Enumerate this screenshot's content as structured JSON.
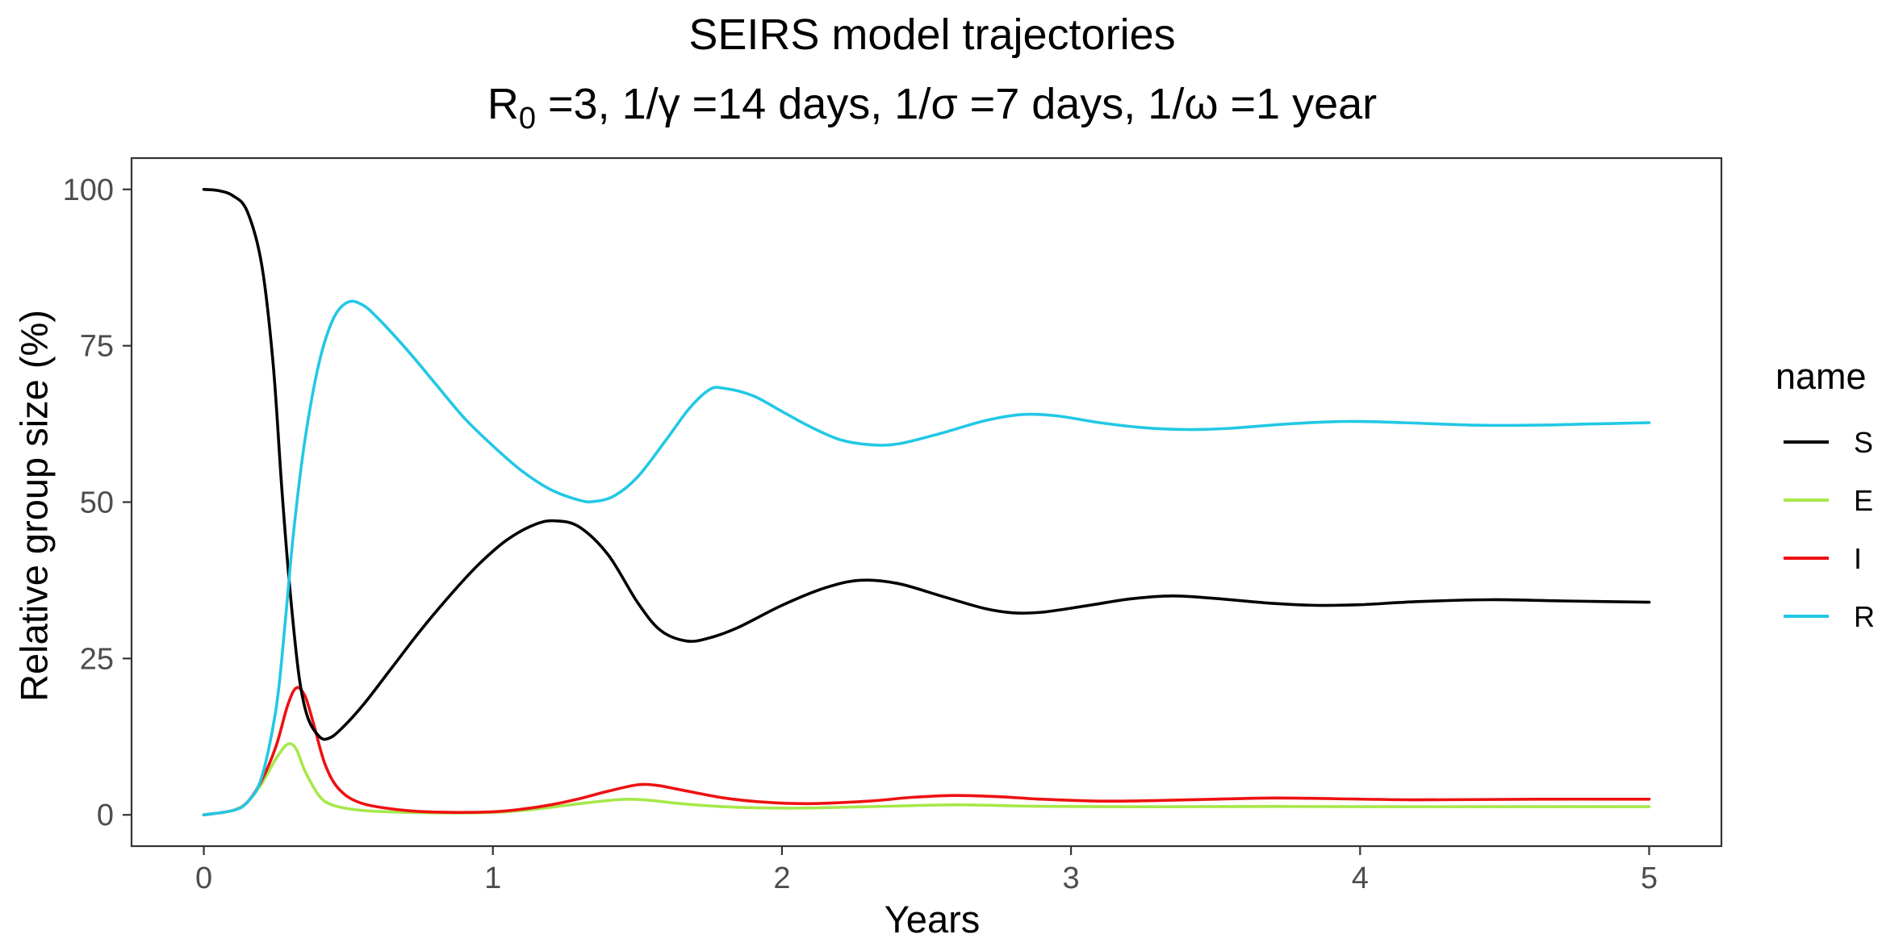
{
  "chart_data": {
    "type": "line",
    "title": "SEIRS model trajectories",
    "subtitle": {
      "r_base": "R",
      "r_sub": "0",
      "rest": " =3, 1/γ =14 days, 1/σ =7 days, 1/ω =1 year"
    },
    "xlabel": "Years",
    "ylabel": "Relative group size (%)",
    "xlim": [
      -0.25,
      5.25
    ],
    "ylim": [
      -5,
      105
    ],
    "x_ticks": [
      0,
      1,
      2,
      3,
      4,
      5
    ],
    "y_ticks": [
      0,
      25,
      50,
      75,
      100
    ],
    "grid": false,
    "legend": {
      "title": "name",
      "position": "right"
    },
    "series": [
      {
        "name": "S",
        "color": "#000000",
        "points": [
          [
            0,
            100
          ],
          [
            0.05,
            99.8
          ],
          [
            0.1,
            99
          ],
          [
            0.15,
            96.5
          ],
          [
            0.2,
            88
          ],
          [
            0.24,
            72
          ],
          [
            0.27,
            52
          ],
          [
            0.3,
            35
          ],
          [
            0.33,
            22
          ],
          [
            0.36,
            15.5
          ],
          [
            0.4,
            12.5
          ],
          [
            0.43,
            12.2
          ],
          [
            0.47,
            13.5
          ],
          [
            0.55,
            17.5
          ],
          [
            0.65,
            23.5
          ],
          [
            0.75,
            29.5
          ],
          [
            0.85,
            35
          ],
          [
            0.95,
            40
          ],
          [
            1.05,
            44
          ],
          [
            1.15,
            46.5
          ],
          [
            1.22,
            47
          ],
          [
            1.3,
            46
          ],
          [
            1.4,
            41.5
          ],
          [
            1.5,
            34
          ],
          [
            1.58,
            29.5
          ],
          [
            1.67,
            27.8
          ],
          [
            1.75,
            28.3
          ],
          [
            1.85,
            30
          ],
          [
            2.0,
            33.5
          ],
          [
            2.15,
            36.3
          ],
          [
            2.27,
            37.5
          ],
          [
            2.4,
            37
          ],
          [
            2.55,
            35
          ],
          [
            2.7,
            33
          ],
          [
            2.8,
            32.3
          ],
          [
            2.9,
            32.4
          ],
          [
            3.05,
            33.4
          ],
          [
            3.2,
            34.5
          ],
          [
            3.35,
            35
          ],
          [
            3.5,
            34.6
          ],
          [
            3.7,
            33.8
          ],
          [
            3.85,
            33.5
          ],
          [
            4.0,
            33.6
          ],
          [
            4.2,
            34.1
          ],
          [
            4.45,
            34.4
          ],
          [
            4.7,
            34.2
          ],
          [
            5.0,
            34
          ]
        ]
      },
      {
        "name": "E",
        "color": "#a6e84a",
        "points": [
          [
            0,
            0
          ],
          [
            0.1,
            0.7
          ],
          [
            0.15,
            2
          ],
          [
            0.2,
            5
          ],
          [
            0.25,
            9
          ],
          [
            0.29,
            11.3
          ],
          [
            0.32,
            10.5
          ],
          [
            0.35,
            7
          ],
          [
            0.4,
            3
          ],
          [
            0.45,
            1.5
          ],
          [
            0.55,
            0.7
          ],
          [
            0.7,
            0.4
          ],
          [
            0.85,
            0.3
          ],
          [
            1.0,
            0.4
          ],
          [
            1.1,
            0.7
          ],
          [
            1.2,
            1.2
          ],
          [
            1.3,
            1.8
          ],
          [
            1.4,
            2.3
          ],
          [
            1.47,
            2.5
          ],
          [
            1.55,
            2.3
          ],
          [
            1.65,
            1.8
          ],
          [
            1.8,
            1.3
          ],
          [
            1.95,
            1.1
          ],
          [
            2.1,
            1.1
          ],
          [
            2.3,
            1.3
          ],
          [
            2.6,
            1.6
          ],
          [
            2.85,
            1.4
          ],
          [
            3.1,
            1.3
          ],
          [
            3.4,
            1.3
          ],
          [
            3.7,
            1.35
          ],
          [
            4.0,
            1.3
          ],
          [
            4.5,
            1.3
          ],
          [
            5.0,
            1.3
          ]
        ]
      },
      {
        "name": "I",
        "color": "#ee1111",
        "points": [
          [
            0,
            0
          ],
          [
            0.1,
            0.7
          ],
          [
            0.15,
            2
          ],
          [
            0.2,
            5.5
          ],
          [
            0.25,
            11
          ],
          [
            0.29,
            17.5
          ],
          [
            0.32,
            20.3
          ],
          [
            0.35,
            19
          ],
          [
            0.38,
            14.5
          ],
          [
            0.42,
            8
          ],
          [
            0.47,
            4
          ],
          [
            0.55,
            1.8
          ],
          [
            0.7,
            0.7
          ],
          [
            0.85,
            0.4
          ],
          [
            1.0,
            0.5
          ],
          [
            1.1,
            0.9
          ],
          [
            1.2,
            1.6
          ],
          [
            1.3,
            2.6
          ],
          [
            1.4,
            3.8
          ],
          [
            1.5,
            4.8
          ],
          [
            1.57,
            4.7
          ],
          [
            1.65,
            4
          ],
          [
            1.8,
            2.7
          ],
          [
            1.95,
            2
          ],
          [
            2.1,
            1.8
          ],
          [
            2.3,
            2.2
          ],
          [
            2.45,
            2.8
          ],
          [
            2.6,
            3.1
          ],
          [
            2.75,
            2.9
          ],
          [
            2.9,
            2.5
          ],
          [
            3.1,
            2.2
          ],
          [
            3.3,
            2.3
          ],
          [
            3.5,
            2.5
          ],
          [
            3.7,
            2.7
          ],
          [
            3.9,
            2.6
          ],
          [
            4.2,
            2.4
          ],
          [
            4.6,
            2.5
          ],
          [
            5.0,
            2.5
          ]
        ]
      },
      {
        "name": "R",
        "color": "#22c8e5",
        "points": [
          [
            0,
            0
          ],
          [
            0.1,
            0.7
          ],
          [
            0.15,
            2
          ],
          [
            0.2,
            6
          ],
          [
            0.25,
            17
          ],
          [
            0.28,
            30
          ],
          [
            0.31,
            45
          ],
          [
            0.35,
            60
          ],
          [
            0.4,
            72.5
          ],
          [
            0.45,
            79.5
          ],
          [
            0.5,
            82
          ],
          [
            0.55,
            81.5
          ],
          [
            0.6,
            79.5
          ],
          [
            0.7,
            74.5
          ],
          [
            0.8,
            69
          ],
          [
            0.9,
            63.5
          ],
          [
            1.0,
            59
          ],
          [
            1.1,
            55
          ],
          [
            1.2,
            52
          ],
          [
            1.3,
            50.3
          ],
          [
            1.35,
            50.1
          ],
          [
            1.42,
            51
          ],
          [
            1.5,
            54
          ],
          [
            1.6,
            60
          ],
          [
            1.68,
            65
          ],
          [
            1.75,
            68
          ],
          [
            1.8,
            68.2
          ],
          [
            1.9,
            67
          ],
          [
            2.0,
            64.5
          ],
          [
            2.1,
            62
          ],
          [
            2.2,
            60
          ],
          [
            2.3,
            59.2
          ],
          [
            2.4,
            59.3
          ],
          [
            2.55,
            61
          ],
          [
            2.7,
            63
          ],
          [
            2.83,
            64
          ],
          [
            2.95,
            63.8
          ],
          [
            3.1,
            62.7
          ],
          [
            3.25,
            61.9
          ],
          [
            3.4,
            61.6
          ],
          [
            3.55,
            61.8
          ],
          [
            3.75,
            62.5
          ],
          [
            3.95,
            62.9
          ],
          [
            4.15,
            62.7
          ],
          [
            4.4,
            62.3
          ],
          [
            4.6,
            62.3
          ],
          [
            4.8,
            62.5
          ],
          [
            5.0,
            62.7
          ]
        ]
      }
    ]
  }
}
